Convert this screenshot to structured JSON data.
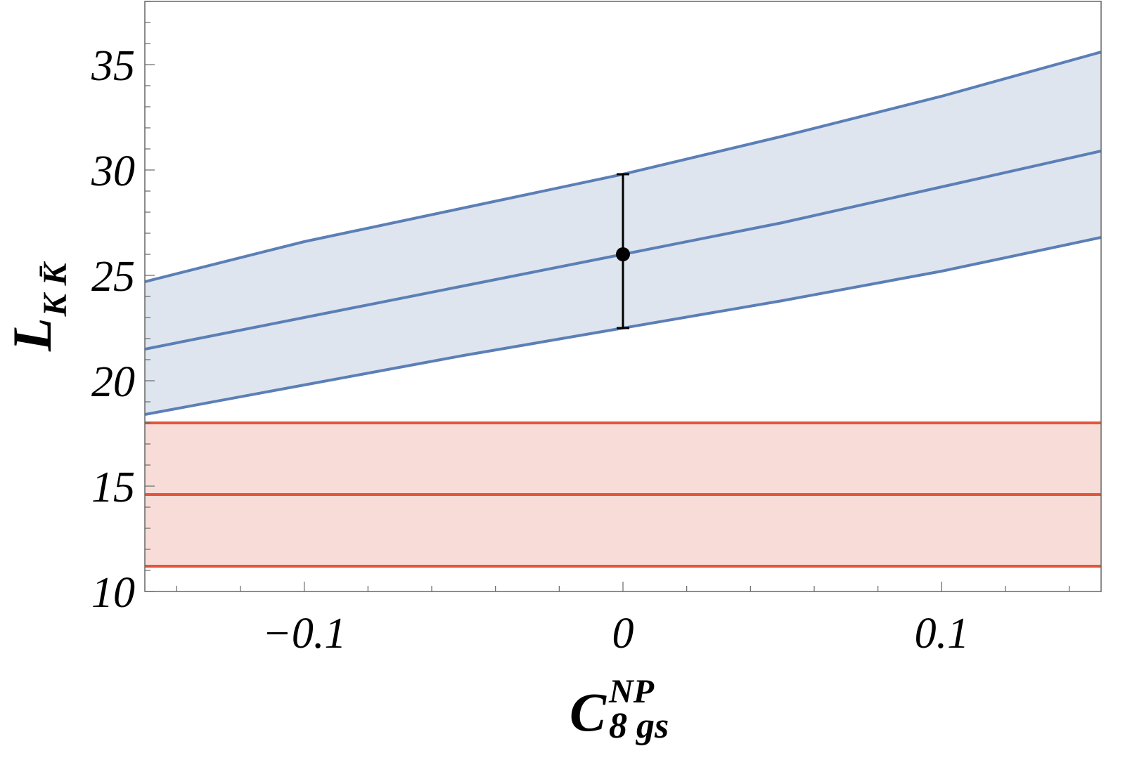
{
  "chart_data": {
    "type": "line",
    "xlabel": {
      "main": "C",
      "sub": "8 gs",
      "sup": "NP"
    },
    "ylabel": {
      "main": "L",
      "sub": "K K̄"
    },
    "xlim": [
      -0.15,
      0.15
    ],
    "ylim": [
      10,
      38
    ],
    "x_major_ticks": [
      -0.1,
      0,
      0.1
    ],
    "x_tick_labels": [
      "−0.1",
      "0",
      "0.1"
    ],
    "y_major_ticks": [
      10,
      15,
      20,
      25,
      30,
      35
    ],
    "y_tick_labels": [
      "10",
      "15",
      "20",
      "25",
      "30",
      "35"
    ],
    "grid": false,
    "series": [
      {
        "color": "#5b7fb6",
        "fill": "#dfe5ef",
        "x": [
          -0.15,
          -0.1,
          -0.05,
          0,
          0.05,
          0.1,
          0.15
        ],
        "upper": [
          24.7,
          26.6,
          28.2,
          29.8,
          31.6,
          33.5,
          35.6
        ],
        "center": [
          21.5,
          23.0,
          24.5,
          26.0,
          27.5,
          29.2,
          30.9
        ],
        "lower": [
          18.4,
          19.8,
          21.2,
          22.5,
          23.8,
          25.2,
          26.8
        ]
      },
      {
        "color": "#e5553a",
        "fill": "#f8dcd7",
        "x": [
          -0.15,
          0.15
        ],
        "upper": [
          18.0,
          18.0
        ],
        "center": [
          14.6,
          14.6
        ],
        "lower": [
          11.2,
          11.2
        ]
      }
    ],
    "points": [
      {
        "x": 0,
        "y": 26.0,
        "err_low": 22.5,
        "err_high": 29.8,
        "color": "#000000"
      }
    ]
  }
}
